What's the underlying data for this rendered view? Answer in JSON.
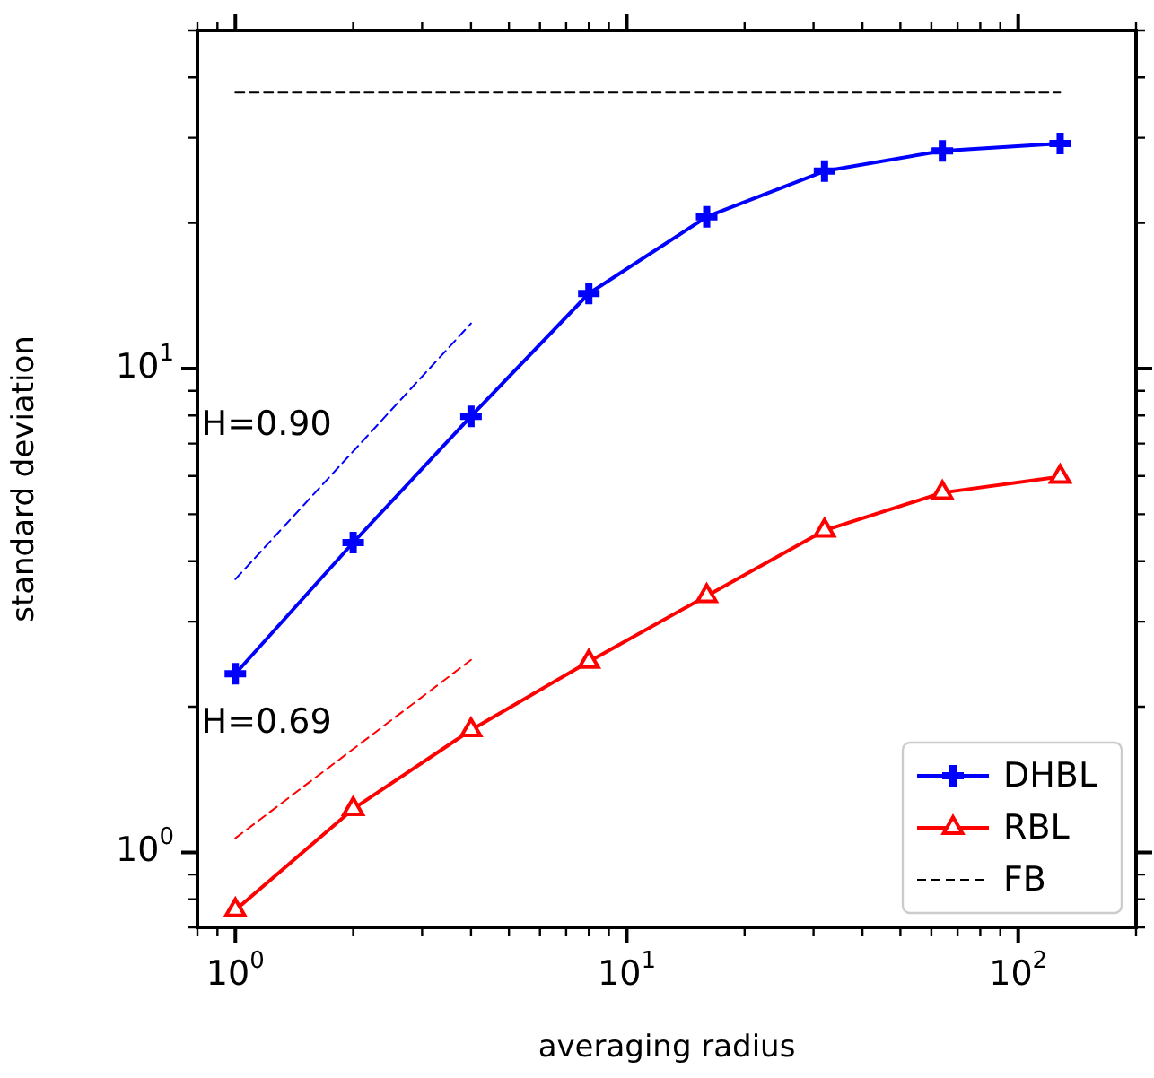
{
  "chart_data": {
    "type": "line",
    "xlabel": "averaging radius",
    "ylabel": "standard deviation",
    "log": "xy",
    "grid": false,
    "legend": "bottom right",
    "xlim": [
      0.8,
      200
    ],
    "xticks": [
      {
        "value": 0.8,
        "label": null
      },
      {
        "value": 0.9,
        "label": null
      },
      {
        "value": 1,
        "label": "10$^{0}$"
      },
      {
        "value": 2,
        "label": null
      },
      {
        "value": 3,
        "label": null
      },
      {
        "value": 4,
        "label": null
      },
      {
        "value": 5,
        "label": null
      },
      {
        "value": 6,
        "label": null
      },
      {
        "value": 7,
        "label": null
      },
      {
        "value": 8,
        "label": null
      },
      {
        "value": 9,
        "label": null
      },
      {
        "value": 10,
        "label": "10$^{1}$"
      },
      {
        "value": 20,
        "label": null
      },
      {
        "value": 30,
        "label": null
      },
      {
        "value": 40,
        "label": null
      },
      {
        "value": 50,
        "label": null
      },
      {
        "value": 60,
        "label": null
      },
      {
        "value": 70,
        "label": null
      },
      {
        "value": 80,
        "label": null
      },
      {
        "value": 90,
        "label": null
      },
      {
        "value": 100,
        "label": "10$^{2}$"
      },
      {
        "value": 200,
        "label": null
      }
    ],
    "ylim": [
      0.7,
      50
    ],
    "yticks": [
      {
        "value": 0.7,
        "label": null
      },
      {
        "value": 0.8,
        "label": null
      },
      {
        "value": 0.9,
        "label": null
      },
      {
        "value": 1,
        "label": "10$^{0}$"
      },
      {
        "value": 2,
        "label": null
      },
      {
        "value": 3,
        "label": null
      },
      {
        "value": 4,
        "label": null
      },
      {
        "value": 5,
        "label": null
      },
      {
        "value": 6,
        "label": null
      },
      {
        "value": 7,
        "label": null
      },
      {
        "value": 8,
        "label": null
      },
      {
        "value": 9,
        "label": null
      },
      {
        "value": 10,
        "label": "10$^{1}$"
      },
      {
        "value": 20,
        "label": null
      },
      {
        "value": 30,
        "label": null
      },
      {
        "value": 40,
        "label": null
      },
      {
        "value": 50,
        "label": null
      }
    ],
    "annotations": [
      "H=0.90",
      "H=0.69"
    ],
    "series": [
      {
        "name": "DHBL",
        "color": "#0000ff",
        "x": [
          1,
          2,
          4,
          8,
          16,
          32,
          64,
          128
        ],
        "values": [
          2.34,
          4.37,
          7.97,
          14.3,
          20.6,
          25.6,
          28.2,
          29.2
        ],
        "marker": "cross",
        "line_style": "solid"
      },
      {
        "name": "RBL",
        "color": "#ff0000",
        "x": [
          1,
          2,
          4,
          8,
          16,
          32,
          64,
          128
        ],
        "values": [
          0.76,
          1.23,
          1.79,
          2.48,
          3.39,
          4.63,
          5.54,
          5.98
        ],
        "marker": "triangle",
        "line_style": "solid"
      },
      {
        "name": "FB",
        "color": "#000000",
        "x": [
          1,
          128
        ],
        "values": [
          37.2,
          37.2
        ],
        "marker": "none",
        "line_style": "dashed"
      },
      {
        "color": "#0000ff",
        "x": [
          1,
          4
        ],
        "values": [
          3.67,
          12.4
        ],
        "marker": "none",
        "line_style": "dashed"
      },
      {
        "color": "#ff0000",
        "x": [
          1,
          4
        ],
        "values": [
          1.07,
          2.5
        ],
        "marker": "none",
        "line_style": "dashed"
      }
    ]
  }
}
